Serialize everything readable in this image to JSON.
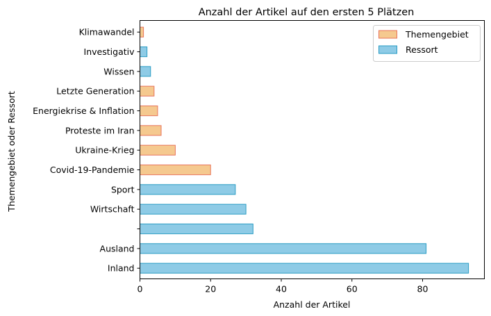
{
  "chart_data": {
    "type": "bar",
    "orientation": "horizontal",
    "title": "Anzahl der Artikel auf den ersten 5 Plätzen",
    "xlabel": "Anzahl der Artikel",
    "ylabel": "Themengebiet oder Ressort",
    "xlim": [
      0,
      97.5
    ],
    "xticks": [
      "0",
      "20",
      "40",
      "60",
      "80"
    ],
    "legend_position": "top-right",
    "grid": false,
    "categories": [
      "Inland",
      "Ausland",
      "",
      "Wirtschaft",
      "Sport",
      "Covid-19-Pandemie",
      "Ukraine-Krieg",
      "Proteste im Iran",
      "Energiekrise & Inflation",
      "Letzte Generation",
      "Wissen",
      "Investigativ",
      "Klimawandel"
    ],
    "values": [
      93,
      81,
      32,
      30,
      27,
      20,
      10,
      6,
      5,
      4,
      3,
      2,
      1
    ],
    "groups": [
      "Ressort",
      "Ressort",
      "Ressort",
      "Ressort",
      "Ressort",
      "Themengebiet",
      "Themengebiet",
      "Themengebiet",
      "Themengebiet",
      "Themengebiet",
      "Ressort",
      "Ressort",
      "Themengebiet"
    ],
    "series": [
      {
        "name": "Themengebiet",
        "fill": "#f5c98f",
        "edge": "#e8735a"
      },
      {
        "name": "Ressort",
        "fill": "#8ecbe6",
        "edge": "#2a9cc4"
      }
    ]
  }
}
